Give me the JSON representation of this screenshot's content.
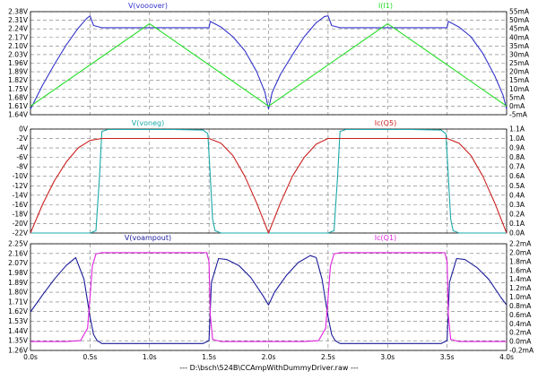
{
  "colors": {
    "vooover": "#3333cc",
    "i1": "#22dd22",
    "voneg": "#1aa8a8",
    "ic_q5": "#cc1f1f",
    "voampout": "#1a1a99",
    "ic_q1": "#dd22dd",
    "grid": "#777777",
    "frame": "#000000"
  },
  "footer": "--- D:\\bsch\\524B\\CCAmpWithDummyDriver.raw ---",
  "chart_data": [
    {
      "type": "line",
      "x_ticks": [
        "0.0s",
        "0.5s",
        "1.0s",
        "1.5s",
        "2.0s",
        "2.5s",
        "3.0s",
        "3.5s",
        "4.0s"
      ],
      "xlim": [
        0,
        4.0
      ],
      "left_axis": {
        "ylim": [
          1.64,
          2.38
        ],
        "ticks": [
          "2.38V",
          "2.31V",
          "2.24V",
          "2.17V",
          "2.10V",
          "2.03V",
          "1.96V",
          "1.89V",
          "1.82V",
          "1.75V",
          "1.68V",
          "1.61V",
          "1.64V"
        ]
      },
      "right_axis": {
        "ylim": [
          -5,
          55
        ],
        "ticks": [
          "55mA",
          "50mA",
          "45mA",
          "40mA",
          "35mA",
          "30mA",
          "25mA",
          "20mA",
          "15mA",
          "10mA",
          "5mA",
          "0mA",
          "-5mA"
        ]
      },
      "series": [
        {
          "name": "V(vooover)",
          "axis": "left",
          "x": [
            0.0,
            0.1,
            0.2,
            0.3,
            0.4,
            0.47,
            0.5,
            0.53,
            0.6,
            0.8,
            1.0,
            1.2,
            1.4,
            1.5,
            1.51,
            1.6,
            1.7,
            1.8,
            1.9,
            1.97,
            2.0,
            2.03,
            2.1,
            2.2,
            2.3,
            2.4,
            2.47,
            2.5,
            2.53,
            2.6,
            2.8,
            3.0,
            3.2,
            3.4,
            3.5,
            3.51,
            3.6,
            3.7,
            3.8,
            3.9,
            3.97,
            4.0
          ],
          "y": [
            1.68,
            1.85,
            2.0,
            2.14,
            2.26,
            2.33,
            2.35,
            2.28,
            2.265,
            2.265,
            2.265,
            2.265,
            2.265,
            2.265,
            2.31,
            2.27,
            2.2,
            2.1,
            1.95,
            1.8,
            1.68,
            1.8,
            1.93,
            2.07,
            2.2,
            2.3,
            2.345,
            2.35,
            2.28,
            2.265,
            2.265,
            2.265,
            2.265,
            2.265,
            2.265,
            2.31,
            2.27,
            2.2,
            2.08,
            1.92,
            1.78,
            1.68
          ]
        },
        {
          "name": "I(I1)",
          "axis": "right",
          "x": [
            0.0,
            1.0,
            2.0,
            3.0,
            4.0
          ],
          "y": [
            0,
            48,
            0,
            48,
            0
          ]
        }
      ]
    },
    {
      "type": "line",
      "x_ticks": [
        "0.0s",
        "0.5s",
        "1.0s",
        "1.5s",
        "2.0s",
        "2.5s",
        "3.0s",
        "3.5s",
        "4.0s"
      ],
      "xlim": [
        0,
        4.0
      ],
      "left_axis": {
        "ylim": [
          -22,
          0
        ],
        "ticks": [
          "0V",
          "-2V",
          "-4V",
          "-6V",
          "-8V",
          "-10V",
          "-12V",
          "-14V",
          "-16V",
          "-18V",
          "-20V",
          "-22V"
        ]
      },
      "right_axis": {
        "ylim": [
          0,
          1.1
        ],
        "ticks": [
          "1.1A",
          "1.0A",
          "0.9A",
          "0.8A",
          "0.7A",
          "0.6A",
          "0.5A",
          "0.4A",
          "0.3A",
          "0.2A",
          "0.1A",
          "0.0A"
        ]
      },
      "series": [
        {
          "name": "V(voneg)",
          "axis": "left",
          "x": [
            0.0,
            0.4,
            0.5,
            0.55,
            0.58,
            0.6,
            0.65,
            0.8,
            1.0,
            1.2,
            1.45,
            1.49,
            1.51,
            1.53,
            1.55,
            1.58,
            1.6,
            2.0,
            2.4,
            2.5,
            2.55,
            2.58,
            2.6,
            2.65,
            2.8,
            3.0,
            3.2,
            3.45,
            3.49,
            3.51,
            3.53,
            3.55,
            3.58,
            3.6,
            4.0
          ],
          "y": [
            -22,
            -22,
            -22,
            -21.5,
            -10,
            -0.5,
            -0.1,
            -0.1,
            -0.1,
            -0.1,
            -0.2,
            -1,
            -10,
            -19,
            -21.5,
            -21.8,
            -22,
            -22,
            -22,
            -22,
            -21.5,
            -10,
            -0.5,
            -0.1,
            -0.1,
            -0.1,
            -0.1,
            -0.2,
            -1,
            -10,
            -19,
            -21.5,
            -21.8,
            -22,
            -22
          ]
        },
        {
          "name": "Ic(Q5)",
          "axis": "right",
          "x": [
            0.0,
            0.1,
            0.2,
            0.3,
            0.4,
            0.5,
            0.6,
            0.8,
            1.0,
            1.2,
            1.5,
            1.6,
            1.7,
            1.8,
            1.9,
            2.0,
            2.1,
            2.2,
            2.3,
            2.4,
            2.5,
            2.6,
            2.8,
            3.0,
            3.2,
            3.5,
            3.6,
            3.7,
            3.8,
            3.9,
            4.0
          ],
          "y": [
            0.0,
            0.3,
            0.55,
            0.75,
            0.9,
            0.98,
            1.0,
            1.0,
            1.0,
            1.0,
            1.0,
            0.95,
            0.82,
            0.6,
            0.32,
            0.0,
            0.32,
            0.6,
            0.8,
            0.94,
            1.0,
            1.0,
            1.0,
            1.0,
            1.0,
            1.0,
            0.95,
            0.82,
            0.6,
            0.32,
            0.0
          ]
        }
      ]
    },
    {
      "type": "line",
      "x_ticks": [
        "0.0s",
        "0.5s",
        "1.0s",
        "1.5s",
        "2.0s",
        "2.5s",
        "3.0s",
        "3.5s",
        "4.0s"
      ],
      "xlim": [
        0,
        4.0
      ],
      "left_axis": {
        "ylim": [
          1.26,
          2.34
        ],
        "ticks": [
          "2.25V",
          "2.16V",
          "2.07V",
          "1.98V",
          "1.89V",
          "1.80V",
          "1.71V",
          "1.62V",
          "1.53V",
          "1.44V",
          "1.35V",
          "1.26V"
        ]
      },
      "right_axis": {
        "ylim": [
          -0.2,
          2.2
        ],
        "ticks": [
          "2.2mA",
          "2.0mA",
          "1.8mA",
          "1.6mA",
          "1.4mA",
          "1.2mA",
          "1.0mA",
          "0.8mA",
          "0.6mA",
          "0.4mA",
          "0.2mA",
          "0.0mA",
          "-0.2mA"
        ]
      },
      "series": [
        {
          "name": "V(voampout)",
          "axis": "left",
          "x": [
            0.0,
            0.1,
            0.2,
            0.3,
            0.38,
            0.45,
            0.5,
            0.53,
            0.56,
            0.6,
            0.8,
            1.0,
            1.2,
            1.45,
            1.5,
            1.52,
            1.58,
            1.65,
            1.75,
            1.85,
            1.95,
            2.0,
            2.05,
            2.15,
            2.25,
            2.35,
            2.4,
            2.45,
            2.5,
            2.53,
            2.56,
            2.6,
            2.8,
            3.0,
            3.2,
            3.45,
            3.5,
            3.52,
            3.58,
            3.65,
            3.75,
            3.85,
            3.95,
            4.0
          ],
          "y": [
            1.65,
            1.82,
            1.98,
            2.12,
            2.2,
            1.98,
            1.6,
            1.42,
            1.36,
            1.33,
            1.33,
            1.33,
            1.33,
            1.33,
            1.36,
            1.95,
            2.19,
            2.18,
            2.12,
            2.0,
            1.82,
            1.72,
            1.85,
            2.02,
            2.15,
            2.22,
            2.2,
            1.98,
            1.6,
            1.42,
            1.36,
            1.33,
            1.33,
            1.33,
            1.33,
            1.33,
            1.36,
            1.95,
            2.19,
            2.18,
            2.1,
            1.98,
            1.8,
            1.72
          ]
        },
        {
          "name": "Ic(Q1)",
          "axis": "right",
          "x": [
            0.0,
            0.3,
            0.42,
            0.48,
            0.5,
            0.52,
            0.55,
            0.6,
            0.8,
            1.0,
            1.2,
            1.48,
            1.5,
            1.51,
            1.53,
            1.6,
            2.0,
            2.3,
            2.42,
            2.48,
            2.5,
            2.52,
            2.55,
            2.6,
            2.8,
            3.0,
            3.2,
            3.48,
            3.5,
            3.51,
            3.53,
            3.6,
            4.0
          ],
          "y": [
            0.0,
            0.0,
            0.02,
            0.3,
            1.0,
            1.7,
            1.97,
            2.0,
            2.0,
            2.0,
            2.0,
            2.0,
            1.8,
            0.6,
            0.05,
            0.0,
            0.0,
            0.0,
            0.02,
            0.3,
            1.0,
            1.7,
            1.97,
            2.0,
            2.0,
            2.0,
            2.0,
            2.0,
            1.8,
            0.6,
            0.05,
            0.0,
            0.0
          ]
        }
      ]
    }
  ]
}
